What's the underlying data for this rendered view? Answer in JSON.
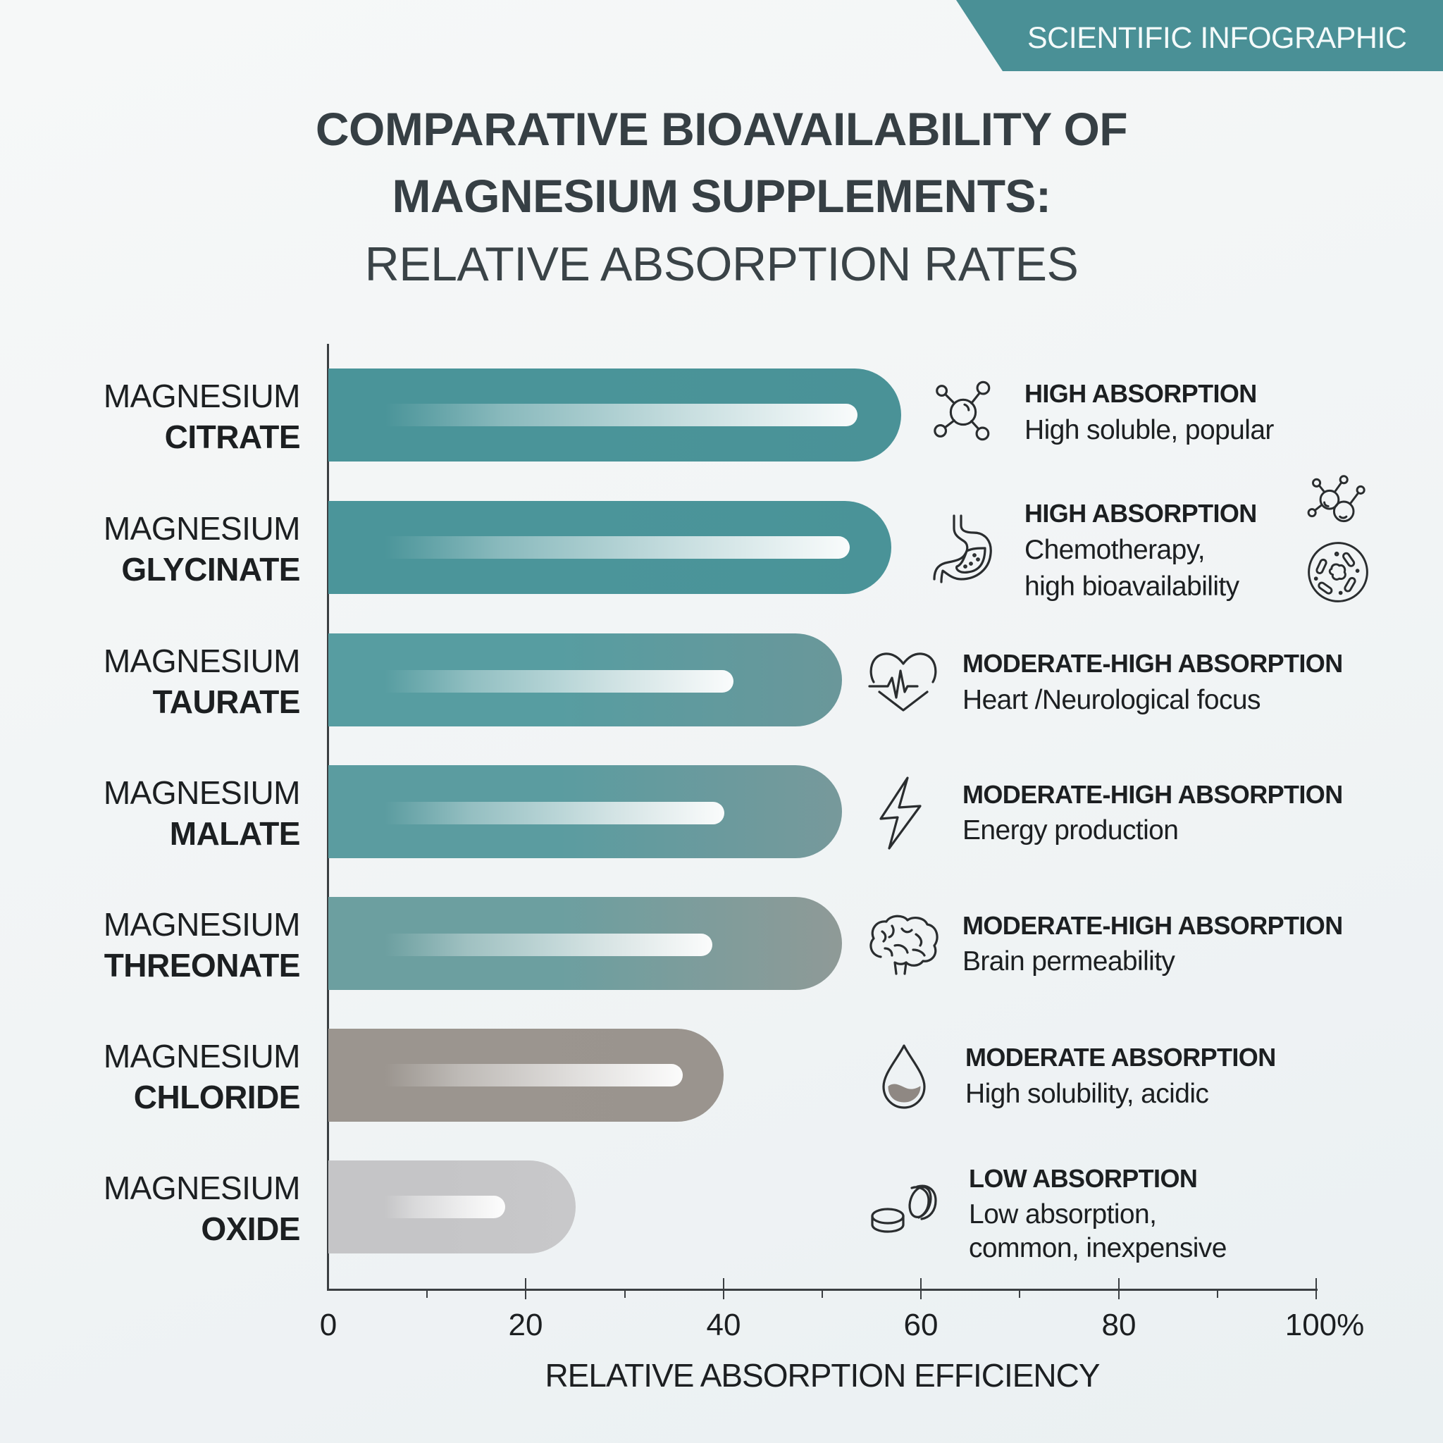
{
  "banner": {
    "label": "SCIENTIFIC INFOGRAPHIC",
    "color": "#4a9096"
  },
  "title": {
    "line1": "COMPARATIVE BIOAVAILABILITY OF",
    "line2": "MAGNESIUM SUPPLEMENTS:",
    "line3": "RELATIVE ABSORPTION RATES"
  },
  "axis": {
    "ticks": [
      "0",
      "20",
      "40",
      "60",
      "80",
      "100%"
    ],
    "label": "RELATIVE ABSORPTION EFFICIENCY"
  },
  "rows": [
    {
      "prefix": "MAGNESIUM",
      "name": "CITRATE",
      "value": 58,
      "highlight_end": 53.6,
      "color_start": "#4a9499",
      "color_end": "#4a9297",
      "level": "HIGH ABSORPTION",
      "desc": [
        "High soluble, popular"
      ],
      "icon": "molecule-icon"
    },
    {
      "prefix": "MAGNESIUM",
      "name": "GLYCINATE",
      "value": 57,
      "highlight_end": 52.8,
      "color_start": "#4b959a",
      "color_end": "#4a9398",
      "level": "HIGH ABSORPTION",
      "desc": [
        "Chemotherapy,",
        "high bioavailability"
      ],
      "icon": "stomach-icon",
      "extra_icons": [
        "double-molecule-icon",
        "cell-icon"
      ]
    },
    {
      "prefix": "MAGNESIUM",
      "name": "TAURATE",
      "value": 52,
      "highlight_end": 41.0,
      "color_start": "#579da1",
      "color_end": "#6a979a",
      "level": "MODERATE-HIGH ABSORPTION",
      "desc": [
        "Heart /Neurological focus"
      ],
      "icon": "heart-pulse-icon"
    },
    {
      "prefix": "MAGNESIUM",
      "name": "MALATE",
      "value": 52,
      "highlight_end": 40.1,
      "color_start": "#5b9ca0",
      "color_end": "#77999b",
      "level": "MODERATE-HIGH ABSORPTION",
      "desc": [
        "Energy production"
      ],
      "icon": "lightning-bolt-icon"
    },
    {
      "prefix": "MAGNESIUM",
      "name": "THREONATE",
      "value": 52,
      "highlight_end": 38.9,
      "color_start": "#6c9fa0",
      "color_end": "#8f9a97",
      "level": "MODERATE-HIGH ABSORPTION",
      "desc": [
        "Brain permeability"
      ],
      "icon": "brain-icon"
    },
    {
      "prefix": "MAGNESIUM",
      "name": "CHLORIDE",
      "value": 40,
      "highlight_end": 35.9,
      "color_start": "#9b958f",
      "color_end": "#9a948e",
      "level": "MODERATE ABSORPTION",
      "desc": [
        "High solubility, acidic"
      ],
      "icon": "water-drop-icon"
    },
    {
      "prefix": "MAGNESIUM",
      "name": "OXIDE",
      "value": 25,
      "highlight_end": 17.9,
      "color_start": "#c5c5c7",
      "color_end": "#c8c8ca",
      "level": "LOW ABSORPTION",
      "desc": [
        "Low absorption,",
        "common, inexpensive"
      ],
      "icon": "pills-icon"
    }
  ],
  "chart_data": {
    "type": "bar",
    "orientation": "horizontal",
    "title": "COMPARATIVE BIOAVAILABILITY OF MAGNESIUM SUPPLEMENTS: RELATIVE ABSORPTION RATES",
    "categories": [
      "MAGNESIUM CITRATE",
      "MAGNESIUM GLYCINATE",
      "MAGNESIUM TAURATE",
      "MAGNESIUM MALATE",
      "MAGNESIUM THREONATE",
      "MAGNESIUM CHLORIDE",
      "MAGNESIUM OXIDE"
    ],
    "values": [
      58,
      57,
      52,
      52,
      52,
      40,
      25
    ],
    "xlabel": "RELATIVE ABSORPTION EFFICIENCY",
    "ylabel": "",
    "xlim": [
      0,
      100
    ],
    "x_ticks": [
      0,
      20,
      40,
      60,
      80,
      100
    ],
    "x_tick_suffix_last": "%",
    "grid": false,
    "annotations": [
      {
        "category": "MAGNESIUM CITRATE",
        "level": "HIGH ABSORPTION",
        "note": "High soluble, popular"
      },
      {
        "category": "MAGNESIUM GLYCINATE",
        "level": "HIGH ABSORPTION",
        "note": "Chemotherapy, high bioavailability"
      },
      {
        "category": "MAGNESIUM TAURATE",
        "level": "MODERATE-HIGH ABSORPTION",
        "note": "Heart /Neurological focus"
      },
      {
        "category": "MAGNESIUM MALATE",
        "level": "MODERATE-HIGH ABSORPTION",
        "note": "Energy production"
      },
      {
        "category": "MAGNESIUM THREONATE",
        "level": "MODERATE-HIGH ABSORPTION",
        "note": "Brain permeability"
      },
      {
        "category": "MAGNESIUM CHLORIDE",
        "level": "MODERATE ABSORPTION",
        "note": "High solubility, acidic"
      },
      {
        "category": "MAGNESIUM OXIDE",
        "level": "LOW ABSORPTION",
        "note": "Low absorption, common, inexpensive"
      }
    ],
    "badge": "SCIENTIFIC INFOGRAPHIC"
  }
}
